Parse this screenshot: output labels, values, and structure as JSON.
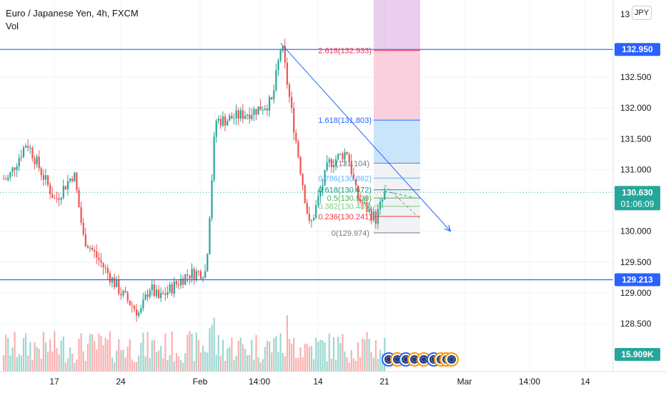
{
  "header": {
    "symbol_title": "Euro / Japanese Yen, 4h, FXCM",
    "volume_label": "Vol",
    "currency_badge": "JPY"
  },
  "price_scale": {
    "ticks": [
      "132.500",
      "132.000",
      "131.500",
      "131.000",
      "130.000",
      "129.500",
      "129.000",
      "128.500"
    ],
    "top_partial_tick": "13"
  },
  "time_axis": {
    "labels": [
      "17",
      "24",
      "Feb",
      "14:00",
      "14",
      "21",
      "Mar",
      "14:00",
      "14"
    ]
  },
  "price_badges": {
    "resistance": "132.950",
    "support": "129.213",
    "last_price": "130.630",
    "countdown": "01:06:09",
    "volume": "15.909K"
  },
  "fibonacci": {
    "levels": [
      {
        "label": "2.618(132.933)",
        "color": "#f23645"
      },
      {
        "label": "1.618(131.803)",
        "color": "#2962ff"
      },
      {
        "label": "1(131.104)",
        "color": "#787b86"
      },
      {
        "label": "0.786(130.862)",
        "color": "#64b5f6"
      },
      {
        "label": "0.618(130.672)",
        "color": "#089981"
      },
      {
        "label": "0.5(130.539)",
        "color": "#4caf50"
      },
      {
        "label": "0.382(130.405)",
        "color": "#81c784"
      },
      {
        "label": "0.236(130.241)",
        "color": "#f23645"
      },
      {
        "label": "0(129.974)",
        "color": "#787b86"
      }
    ]
  },
  "colors": {
    "up": "#26a69a",
    "down": "#ef5350",
    "line": "#2962ff",
    "text": "#131722",
    "muted": "#787b86"
  },
  "chart_data": {
    "type": "candlestick",
    "ylim": [
      128.1,
      133.35
    ],
    "horizontal_lines": [
      132.95,
      129.213
    ],
    "last_price": 130.63,
    "price_path": [
      {
        "x": "Jan 12",
        "y": 130.85
      },
      {
        "x": "Jan 14",
        "y": 131.45
      },
      {
        "x": "Jan 17",
        "y": 130.5
      },
      {
        "x": "Jan 19",
        "y": 130.95
      },
      {
        "x": "Jan 20",
        "y": 129.9
      },
      {
        "x": "Jan 24",
        "y": 129.0
      },
      {
        "x": "Jan 26",
        "y": 128.65
      },
      {
        "x": "Jan 27",
        "y": 129.1
      },
      {
        "x": "Jan 28",
        "y": 128.9
      },
      {
        "x": "Jan 31",
        "y": 129.3
      },
      {
        "x": "Feb 02",
        "y": 129.35
      },
      {
        "x": "Feb 03",
        "y": 131.8
      },
      {
        "x": "Feb 04",
        "y": 131.8
      },
      {
        "x": "Feb 07",
        "y": 131.95
      },
      {
        "x": "Feb 09",
        "y": 132.1
      },
      {
        "x": "Feb 10",
        "y": 133.05
      },
      {
        "x": "Feb 11",
        "y": 132.0
      },
      {
        "x": "Feb 13",
        "y": 130.05
      },
      {
        "x": "Feb 15",
        "y": 131.1
      },
      {
        "x": "Feb 17",
        "y": 131.3
      },
      {
        "x": "Feb 18",
        "y": 130.55
      },
      {
        "x": "Feb 20",
        "y": 130.2
      },
      {
        "x": "Feb 21",
        "y": 130.63
      }
    ],
    "trendline": {
      "from": {
        "x": "Feb 10",
        "y": 133.05
      },
      "to": {
        "x": "Feb 28",
        "y": 130.0
      }
    }
  }
}
